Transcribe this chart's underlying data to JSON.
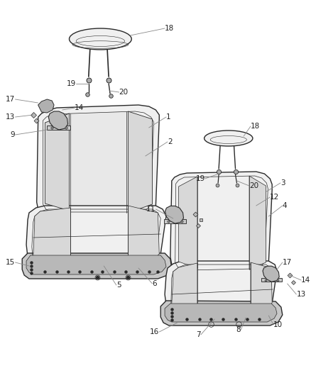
{
  "bg_color": "#ffffff",
  "line_color": "#2a2a2a",
  "seat_fill": "#f0f0f0",
  "cushion_fill": "#e8e8e8",
  "dark_fill": "#d8d8d8",
  "bracket_fill": "#c0c0c0",
  "label_color": "#222222",
  "callout_line_color": "#888888",
  "font_size": 7.5,
  "line_width": 1.0
}
